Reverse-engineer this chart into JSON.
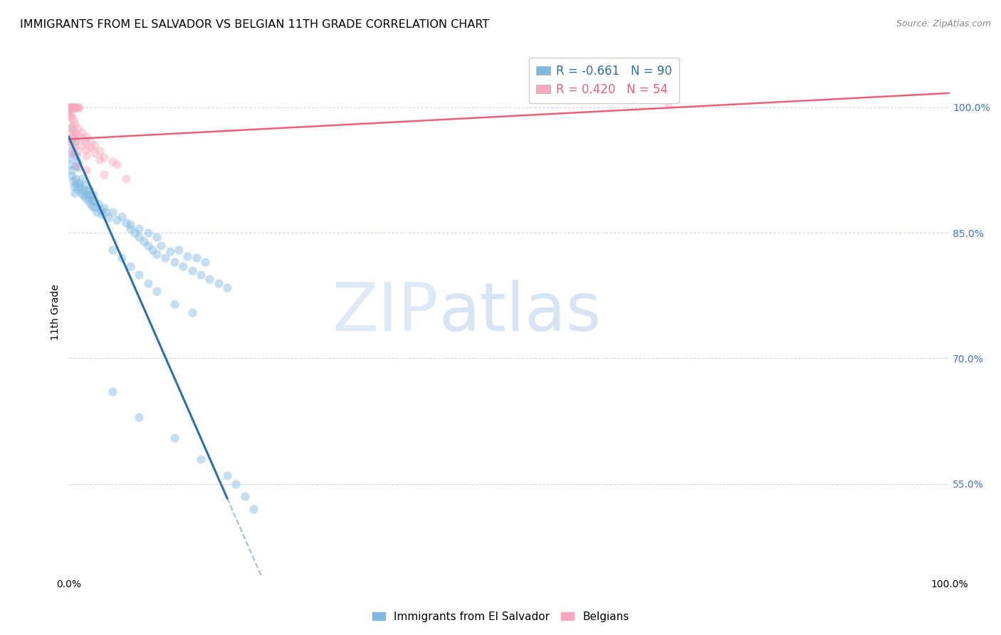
{
  "title": "IMMIGRANTS FROM EL SALVADOR VS BELGIAN 11TH GRADE CORRELATION CHART",
  "source": "Source: ZipAtlas.com",
  "ylabel": "11th Grade",
  "xlim": [
    0.0,
    100.0
  ],
  "ylim": [
    44.0,
    107.0
  ],
  "yticks": [
    55.0,
    70.0,
    85.0,
    100.0
  ],
  "xticks": [
    0.0,
    10.0,
    20.0,
    30.0,
    40.0,
    50.0,
    60.0,
    70.0,
    80.0,
    90.0,
    100.0
  ],
  "blue_R": -0.661,
  "blue_N": 90,
  "pink_R": 0.42,
  "pink_N": 54,
  "blue_color": "#7fb9e0",
  "pink_color": "#f7a8bc",
  "blue_line_color": "#2c6fad",
  "pink_line_color": "#e8607a",
  "legend_label_blue": "Immigrants from El Salvador",
  "legend_label_pink": "Belgians",
  "watermark_zip": "ZIP",
  "watermark_atlas": "atlas",
  "grid_color": "#d0d8e8",
  "title_fontsize": 11.5,
  "axis_label_fontsize": 10,
  "tick_fontsize": 10,
  "scatter_size": 80,
  "scatter_alpha": 0.45,
  "blue_scatter": [
    [
      0.2,
      96.0
    ],
    [
      0.3,
      97.5
    ],
    [
      0.4,
      95.0
    ],
    [
      0.5,
      96.5
    ],
    [
      0.6,
      94.5
    ],
    [
      0.7,
      95.8
    ],
    [
      0.8,
      93.0
    ],
    [
      0.9,
      94.2
    ],
    [
      1.0,
      93.5
    ],
    [
      1.1,
      92.8
    ],
    [
      0.1,
      94.0
    ],
    [
      0.2,
      93.2
    ],
    [
      0.3,
      92.5
    ],
    [
      0.4,
      91.8
    ],
    [
      0.5,
      91.2
    ],
    [
      0.6,
      90.5
    ],
    [
      0.7,
      89.8
    ],
    [
      0.8,
      91.5
    ],
    [
      0.9,
      90.8
    ],
    [
      1.0,
      90.2
    ],
    [
      1.2,
      91.0
    ],
    [
      1.3,
      90.5
    ],
    [
      1.4,
      89.8
    ],
    [
      1.5,
      91.5
    ],
    [
      1.6,
      90.2
    ],
    [
      1.7,
      89.5
    ],
    [
      1.8,
      90.8
    ],
    [
      1.9,
      89.2
    ],
    [
      2.0,
      90.0
    ],
    [
      2.1,
      89.5
    ],
    [
      2.2,
      88.8
    ],
    [
      2.3,
      90.2
    ],
    [
      2.4,
      89.5
    ],
    [
      2.5,
      88.5
    ],
    [
      2.6,
      89.0
    ],
    [
      2.7,
      88.2
    ],
    [
      2.8,
      89.5
    ],
    [
      2.9,
      88.8
    ],
    [
      3.0,
      88.0
    ],
    [
      3.2,
      87.5
    ],
    [
      3.4,
      88.5
    ],
    [
      3.6,
      87.8
    ],
    [
      3.8,
      87.2
    ],
    [
      4.0,
      88.0
    ],
    [
      4.2,
      87.5
    ],
    [
      4.5,
      86.8
    ],
    [
      5.0,
      87.5
    ],
    [
      5.5,
      86.5
    ],
    [
      6.0,
      87.0
    ],
    [
      6.5,
      86.2
    ],
    [
      7.0,
      85.5
    ],
    [
      7.5,
      85.0
    ],
    [
      8.0,
      84.5
    ],
    [
      8.5,
      84.0
    ],
    [
      9.0,
      83.5
    ],
    [
      9.5,
      83.0
    ],
    [
      10.0,
      82.5
    ],
    [
      11.0,
      82.0
    ],
    [
      12.0,
      81.5
    ],
    [
      13.0,
      81.0
    ],
    [
      14.0,
      80.5
    ],
    [
      15.0,
      80.0
    ],
    [
      16.0,
      79.5
    ],
    [
      17.0,
      79.0
    ],
    [
      18.0,
      78.5
    ],
    [
      10.5,
      83.5
    ],
    [
      11.5,
      82.8
    ],
    [
      12.5,
      83.0
    ],
    [
      13.5,
      82.2
    ],
    [
      14.5,
      82.0
    ],
    [
      15.5,
      81.5
    ],
    [
      7.0,
      86.0
    ],
    [
      8.0,
      85.5
    ],
    [
      9.0,
      85.0
    ],
    [
      10.0,
      84.5
    ],
    [
      5.0,
      83.0
    ],
    [
      6.0,
      82.0
    ],
    [
      7.0,
      81.0
    ],
    [
      8.0,
      80.0
    ],
    [
      9.0,
      79.0
    ],
    [
      10.0,
      78.0
    ],
    [
      12.0,
      76.5
    ],
    [
      14.0,
      75.5
    ],
    [
      5.0,
      66.0
    ],
    [
      8.0,
      63.0
    ],
    [
      12.0,
      60.5
    ],
    [
      15.0,
      58.0
    ],
    [
      18.0,
      56.0
    ],
    [
      19.0,
      55.0
    ],
    [
      20.0,
      53.5
    ],
    [
      21.0,
      52.0
    ]
  ],
  "pink_scatter": [
    [
      0.05,
      100.0
    ],
    [
      0.1,
      100.0
    ],
    [
      0.15,
      100.0
    ],
    [
      0.2,
      100.0
    ],
    [
      0.25,
      100.0
    ],
    [
      0.3,
      100.0
    ],
    [
      0.35,
      100.0
    ],
    [
      0.4,
      100.0
    ],
    [
      0.45,
      100.0
    ],
    [
      0.5,
      100.0
    ],
    [
      0.6,
      100.0
    ],
    [
      0.7,
      100.0
    ],
    [
      0.8,
      100.0
    ],
    [
      0.9,
      100.0
    ],
    [
      1.0,
      100.0
    ],
    [
      1.2,
      100.0
    ],
    [
      0.05,
      99.5
    ],
    [
      0.1,
      99.0
    ],
    [
      0.2,
      99.2
    ],
    [
      0.3,
      98.8
    ],
    [
      0.5,
      98.5
    ],
    [
      0.7,
      98.0
    ],
    [
      1.0,
      97.5
    ],
    [
      1.5,
      97.0
    ],
    [
      2.0,
      96.5
    ],
    [
      2.5,
      96.0
    ],
    [
      3.0,
      95.5
    ],
    [
      0.4,
      97.8
    ],
    [
      0.6,
      97.2
    ],
    [
      0.8,
      96.8
    ],
    [
      1.2,
      96.5
    ],
    [
      1.8,
      96.0
    ],
    [
      2.5,
      95.2
    ],
    [
      3.5,
      94.8
    ],
    [
      0.3,
      97.0
    ],
    [
      0.5,
      96.5
    ],
    [
      0.8,
      96.0
    ],
    [
      1.5,
      95.5
    ],
    [
      2.0,
      95.0
    ],
    [
      3.0,
      94.5
    ],
    [
      4.0,
      94.0
    ],
    [
      5.0,
      93.5
    ],
    [
      0.2,
      95.8
    ],
    [
      0.6,
      95.2
    ],
    [
      1.0,
      94.8
    ],
    [
      2.0,
      94.2
    ],
    [
      3.5,
      93.8
    ],
    [
      5.5,
      93.2
    ],
    [
      0.4,
      94.5
    ],
    [
      1.0,
      93.0
    ],
    [
      2.0,
      92.5
    ],
    [
      4.0,
      92.0
    ],
    [
      6.5,
      91.5
    ],
    [
      68.0,
      100.5
    ]
  ],
  "blue_solid_x_end": 18.0,
  "blue_dash_x_end": 45.0,
  "blue_intercept": 96.5,
  "blue_slope": -2.4,
  "pink_intercept": 96.2,
  "pink_slope": 0.055
}
